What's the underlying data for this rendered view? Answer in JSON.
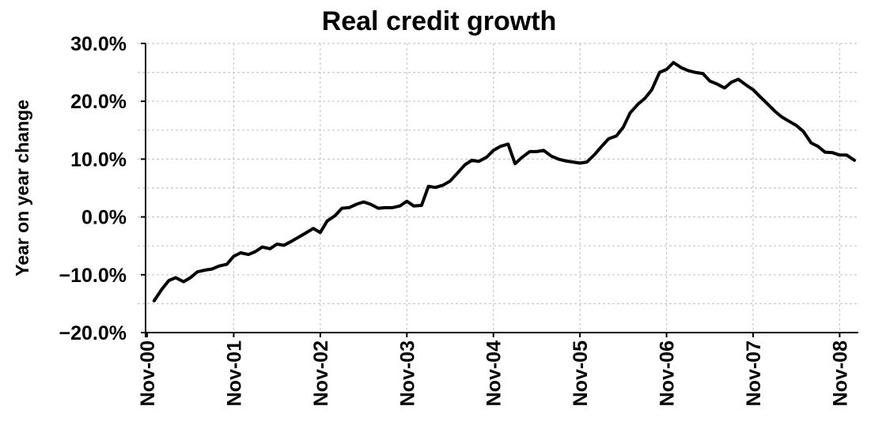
{
  "chart_data": {
    "type": "line",
    "title": "Real credit growth",
    "xlabel": "",
    "ylabel": "Year on year change",
    "ylim": [
      -20,
      30
    ],
    "y_ticks": [
      -20,
      -10,
      0,
      10,
      20,
      30
    ],
    "y_tick_labels": [
      "−20.0%",
      "−10.0%",
      "0.0%",
      "10.0%",
      "20.0%",
      "30.0%"
    ],
    "x_tick_labels": [
      "Nov-00",
      "Nov-01",
      "Nov-02",
      "Nov-03",
      "Nov-04",
      "Nov-05",
      "Nov-06",
      "Nov-07",
      "Nov-08"
    ],
    "grid": true,
    "series": [
      {
        "values": [
          [
            0.08,
            -14.5
          ],
          [
            0.17,
            -12.5
          ],
          [
            0.25,
            -11.0
          ],
          [
            0.33,
            -10.5
          ],
          [
            0.42,
            -11.2
          ],
          [
            0.5,
            -10.5
          ],
          [
            0.58,
            -9.5
          ],
          [
            0.67,
            -9.2
          ],
          [
            0.75,
            -9.0
          ],
          [
            0.83,
            -8.5
          ],
          [
            0.92,
            -8.2
          ],
          [
            1.0,
            -6.8
          ],
          [
            1.08,
            -6.2
          ],
          [
            1.17,
            -6.5
          ],
          [
            1.25,
            -6.0
          ],
          [
            1.33,
            -5.2
          ],
          [
            1.42,
            -5.5
          ],
          [
            1.5,
            -4.7
          ],
          [
            1.58,
            -4.9
          ],
          [
            1.67,
            -4.2
          ],
          [
            1.75,
            -3.5
          ],
          [
            1.83,
            -2.8
          ],
          [
            1.92,
            -2.0
          ],
          [
            2.0,
            -2.7
          ],
          [
            2.08,
            -0.7
          ],
          [
            2.17,
            0.2
          ],
          [
            2.25,
            1.5
          ],
          [
            2.33,
            1.6
          ],
          [
            2.42,
            2.2
          ],
          [
            2.5,
            2.6
          ],
          [
            2.58,
            2.2
          ],
          [
            2.67,
            1.5
          ],
          [
            2.75,
            1.6
          ],
          [
            2.83,
            1.6
          ],
          [
            2.92,
            1.9
          ],
          [
            3.0,
            2.7
          ],
          [
            3.08,
            1.9
          ],
          [
            3.17,
            2.0
          ],
          [
            3.25,
            5.3
          ],
          [
            3.33,
            5.1
          ],
          [
            3.42,
            5.5
          ],
          [
            3.5,
            6.2
          ],
          [
            3.58,
            7.5
          ],
          [
            3.67,
            9.0
          ],
          [
            3.75,
            9.8
          ],
          [
            3.83,
            9.6
          ],
          [
            3.92,
            10.3
          ],
          [
            4.0,
            11.5
          ],
          [
            4.08,
            12.2
          ],
          [
            4.17,
            12.6
          ],
          [
            4.25,
            9.2
          ],
          [
            4.33,
            10.3
          ],
          [
            4.42,
            11.3
          ],
          [
            4.5,
            11.3
          ],
          [
            4.58,
            11.5
          ],
          [
            4.67,
            10.5
          ],
          [
            4.75,
            10.0
          ],
          [
            4.83,
            9.7
          ],
          [
            4.92,
            9.5
          ],
          [
            5.0,
            9.3
          ],
          [
            5.08,
            9.5
          ],
          [
            5.17,
            10.8
          ],
          [
            5.25,
            12.2
          ],
          [
            5.33,
            13.5
          ],
          [
            5.42,
            14.0
          ],
          [
            5.5,
            15.5
          ],
          [
            5.58,
            18.0
          ],
          [
            5.67,
            19.5
          ],
          [
            5.75,
            20.5
          ],
          [
            5.83,
            22.0
          ],
          [
            5.92,
            25.0
          ],
          [
            6.0,
            25.5
          ],
          [
            6.08,
            26.7
          ],
          [
            6.17,
            25.8
          ],
          [
            6.25,
            25.3
          ],
          [
            6.33,
            25.0
          ],
          [
            6.42,
            24.8
          ],
          [
            6.5,
            23.5
          ],
          [
            6.58,
            23.0
          ],
          [
            6.67,
            22.3
          ],
          [
            6.75,
            23.3
          ],
          [
            6.83,
            23.8
          ],
          [
            6.92,
            22.8
          ],
          [
            7.0,
            22.0
          ],
          [
            7.08,
            20.8
          ],
          [
            7.17,
            19.5
          ],
          [
            7.25,
            18.3
          ],
          [
            7.33,
            17.3
          ],
          [
            7.42,
            16.5
          ],
          [
            7.5,
            15.8
          ],
          [
            7.58,
            14.8
          ],
          [
            7.67,
            12.8
          ],
          [
            7.75,
            12.2
          ],
          [
            7.83,
            11.2
          ],
          [
            7.92,
            11.1
          ],
          [
            8.0,
            10.7
          ],
          [
            8.08,
            10.7
          ],
          [
            8.17,
            9.8
          ]
        ]
      }
    ]
  }
}
